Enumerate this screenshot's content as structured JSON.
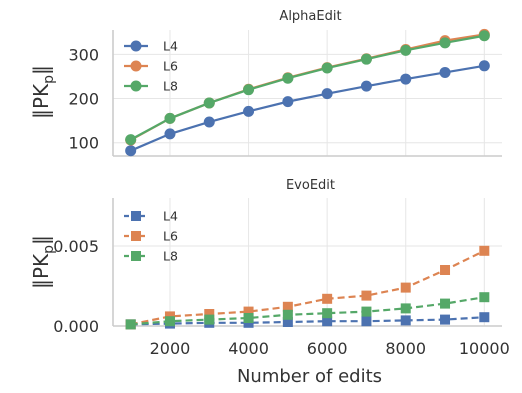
{
  "chart_data": [
    {
      "type": "line",
      "title": "AlphaEdit",
      "xlabel": "",
      "ylabel": "‖PK_p‖",
      "x": [
        1000,
        2000,
        3000,
        4000,
        5000,
        6000,
        7000,
        8000,
        9000,
        10000
      ],
      "xlim": [
        550,
        10450
      ],
      "ylim": [
        70,
        355
      ],
      "yticks": [
        100,
        200,
        300
      ],
      "ytick_labels": [
        "100",
        "200",
        "300"
      ],
      "grid": true,
      "legend_position": "top-left",
      "marker": "circle",
      "line_style": "solid",
      "series": [
        {
          "name": "L4",
          "color": "#4c72b0",
          "values": [
            82,
            120,
            147,
            171,
            193,
            211,
            228,
            244,
            259,
            274
          ]
        },
        {
          "name": "L6",
          "color": "#dd8452",
          "values": [
            106,
            155,
            190,
            221,
            247,
            270,
            290,
            311,
            331,
            345
          ]
        },
        {
          "name": "L8",
          "color": "#55a868",
          "values": [
            107,
            155,
            190,
            220,
            246,
            269,
            289,
            309,
            326,
            342
          ]
        }
      ]
    },
    {
      "type": "line",
      "title": "EvoEdit",
      "xlabel": "Number of edits",
      "ylabel": "‖PK_p‖",
      "x": [
        1000,
        2000,
        3000,
        4000,
        5000,
        6000,
        7000,
        8000,
        9000,
        10000
      ],
      "xlim": [
        550,
        10450
      ],
      "ylim": [
        0,
        0.008
      ],
      "xticks": [
        2000,
        4000,
        6000,
        8000,
        10000
      ],
      "xtick_labels": [
        "2000",
        "4000",
        "6000",
        "8000",
        "10000"
      ],
      "yticks": [
        0,
        0.005
      ],
      "ytick_labels": [
        "0.000",
        "0.005"
      ],
      "grid": true,
      "legend_position": "top-left",
      "marker": "square",
      "line_style": "dashed",
      "series": [
        {
          "name": "L4",
          "color": "#4c72b0",
          "values": [
            0.0001,
            0.00015,
            0.0002,
            0.0002,
            0.00025,
            0.0003,
            0.0003,
            0.00035,
            0.0004,
            0.00055
          ]
        },
        {
          "name": "L6",
          "color": "#dd8452",
          "values": [
            0.0001,
            0.0006,
            0.00075,
            0.0009,
            0.0012,
            0.0017,
            0.0019,
            0.0024,
            0.0035,
            0.0047
          ]
        },
        {
          "name": "L8",
          "color": "#55a868",
          "values": [
            0.0001,
            0.0003,
            0.0004,
            0.0005,
            0.0007,
            0.0008,
            0.0009,
            0.0011,
            0.0014,
            0.0018
          ]
        }
      ]
    }
  ]
}
